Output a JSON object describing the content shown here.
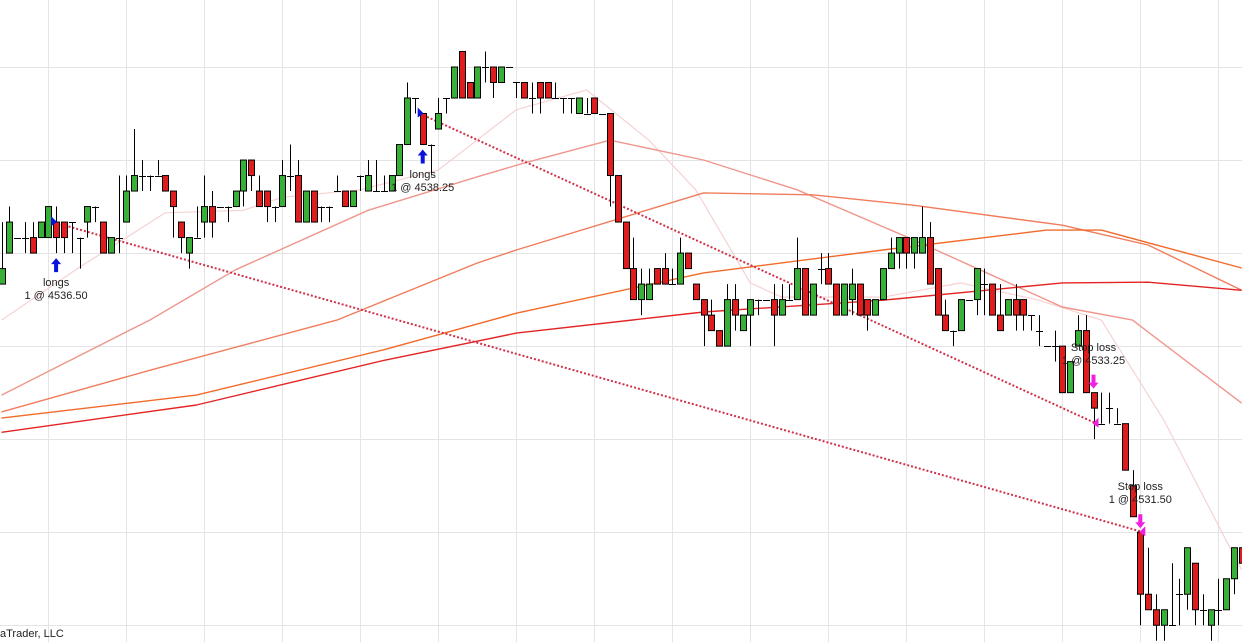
{
  "copyright": "aTrader, LLC",
  "colors": {
    "up_candle": "#38b038",
    "down_candle": "#e01c1c",
    "wick": "#000000",
    "grid": "#e4e4e4",
    "trade_line": "#d0304a",
    "entry_marker": "#0a14d8",
    "exit_marker": "#f020e0"
  },
  "chart_data": {
    "type": "candlestick",
    "title": "",
    "xlabel": "",
    "ylabel": "",
    "ylim": [
      4529.73,
      4540.08
    ],
    "grid": true,
    "price_grid_step": 1.5,
    "candles_ohlc": [
      [
        4535.5,
        4536.5,
        4535.5,
        4535.75
      ],
      [
        4536,
        4536.75,
        4536,
        4536.5
      ],
      [
        4536.25,
        4536.25,
        4536.25,
        4536.25
      ],
      [
        4536.25,
        4536.5,
        4536,
        4536.25
      ],
      [
        4536.25,
        4536.5,
        4536,
        4536
      ],
      [
        4536.25,
        4536.5,
        4536.25,
        4536.5
      ],
      [
        4536.25,
        4536.75,
        4536.25,
        4536.75
      ],
      [
        4536.5,
        4536.75,
        4536,
        4536.25
      ],
      [
        4536.5,
        4536.5,
        4536,
        4536.25
      ],
      [
        4536.5,
        4536.5,
        4536,
        4536.5
      ],
      [
        4536.25,
        4536.25,
        4535.75,
        4536.25
      ],
      [
        4536.5,
        4536.75,
        4536.25,
        4536.75
      ],
      [
        4536.75,
        4536.75,
        4536.5,
        4536.75
      ],
      [
        4536.5,
        4536.5,
        4536,
        4536
      ],
      [
        4536,
        4536.25,
        4536,
        4536.25
      ],
      [
        4536.25,
        4537.25,
        4536,
        4536.25
      ],
      [
        4536.5,
        4537.25,
        4536.5,
        4537
      ],
      [
        4537,
        4538,
        4537,
        4537.25
      ],
      [
        4537.25,
        4537.5,
        4537,
        4537.25
      ],
      [
        4537.25,
        4537.25,
        4537,
        4537.25
      ],
      [
        4537.25,
        4537.5,
        4537.25,
        4537.25
      ],
      [
        4537.25,
        4537.25,
        4537,
        4537
      ],
      [
        4537,
        4537,
        4536.25,
        4536.75
      ],
      [
        4536.5,
        4536.5,
        4536,
        4536.25
      ],
      [
        4536,
        4536.25,
        4535.75,
        4536.25
      ],
      [
        4536.25,
        4536.75,
        4536.25,
        4536.25
      ],
      [
        4536.5,
        4537.25,
        4536.25,
        4536.75
      ],
      [
        4536.75,
        4537,
        4536.25,
        4536.5
      ],
      [
        4536.75,
        4536.75,
        4536.75,
        4536.75
      ],
      [
        4536.75,
        4536.75,
        4536.5,
        4536.75
      ],
      [
        4536.75,
        4537,
        4536.75,
        4537
      ],
      [
        4537,
        4537.5,
        4536.75,
        4537.5
      ],
      [
        4537.5,
        4537.5,
        4537,
        4537.25
      ],
      [
        4537,
        4537.25,
        4536.75,
        4536.75
      ],
      [
        4537,
        4537,
        4536.5,
        4536.75
      ],
      [
        4536.75,
        4536.75,
        4536.5,
        4536.75
      ],
      [
        4536.75,
        4537.5,
        4536.75,
        4537.25
      ],
      [
        4537.25,
        4537.75,
        4537,
        4537.25
      ],
      [
        4537.25,
        4537.5,
        4536.5,
        4536.5
      ],
      [
        4536.5,
        4537,
        4536.5,
        4537
      ],
      [
        4537,
        4537,
        4536.5,
        4536.5
      ],
      [
        4536.75,
        4536.75,
        4536.5,
        4536.75
      ],
      [
        4536.75,
        4536.75,
        4536.5,
        4536.75
      ],
      [
        4537,
        4537.25,
        4537,
        4537
      ],
      [
        4537,
        4537,
        4536.75,
        4536.75
      ],
      [
        4536.75,
        4537,
        4536.75,
        4537
      ],
      [
        4537.25,
        4537.25,
        4537,
        4537.25
      ],
      [
        4537,
        4537.5,
        4537,
        4537.25
      ],
      [
        4537,
        4537.5,
        4537,
        4537
      ],
      [
        4537,
        4537.25,
        4537,
        4537
      ],
      [
        4537,
        4537.25,
        4537,
        4537.25
      ],
      [
        4537.25,
        4537.75,
        4537.25,
        4537.75
      ],
      [
        4537.75,
        4538.75,
        4537.75,
        4538.5
      ],
      [
        4538.5,
        4538.5,
        4538.25,
        4538.5
      ],
      [
        4538.25,
        4538.25,
        4537.75,
        4537.75
      ],
      [
        4537.75,
        4537.75,
        4537.25,
        4537.75
      ],
      [
        4538,
        4538.5,
        4538,
        4538.25
      ],
      [
        4538.5,
        4538.5,
        4538.25,
        4538.5
      ],
      [
        4538.5,
        4539,
        4538.5,
        4539
      ],
      [
        4539.25,
        4539.25,
        4538.5,
        4538.5
      ],
      [
        4538.75,
        4538.75,
        4538.5,
        4538.5
      ],
      [
        4538.5,
        4539,
        4538.5,
        4539
      ],
      [
        4539,
        4539.25,
        4538.75,
        4539
      ],
      [
        4539,
        4539,
        4538.5,
        4538.75
      ],
      [
        4538.75,
        4539,
        4538.75,
        4539
      ],
      [
        4539,
        4539,
        4539,
        4539
      ],
      [
        4538.75,
        4538.75,
        4538.5,
        4538.75
      ],
      [
        4538.75,
        4538.75,
        4538.5,
        4538.5
      ],
      [
        4538.5,
        4538.75,
        4538.25,
        4538.5
      ],
      [
        4538.75,
        4538.75,
        4538.25,
        4538.5
      ],
      [
        4538.75,
        4538.75,
        4538.5,
        4538.5
      ],
      [
        4538.5,
        4538.75,
        4538.5,
        4538.5
      ],
      [
        4538.5,
        4538.5,
        4538.25,
        4538.5
      ],
      [
        4538.5,
        4538.5,
        4538.25,
        4538.5
      ],
      [
        4538.25,
        4538.5,
        4538.25,
        4538.5
      ],
      [
        4538.25,
        4538.5,
        4538.25,
        4538.25
      ],
      [
        4538.5,
        4538.5,
        4538.25,
        4538.25
      ],
      [
        4538.25,
        4538.25,
        4538.25,
        4538.25
      ],
      [
        4538.25,
        4538.25,
        4536.75,
        4537.25
      ],
      [
        4537.25,
        4537.25,
        4536.5,
        4536.5
      ],
      [
        4536.5,
        4536.5,
        4535.75,
        4535.75
      ],
      [
        4535.75,
        4536.25,
        4535.25,
        4535.25
      ],
      [
        4535.25,
        4535.75,
        4535,
        4535.5
      ],
      [
        4535.25,
        4535.75,
        4535.25,
        4535.5
      ],
      [
        4535.75,
        4535.75,
        4535.5,
        4535.5
      ],
      [
        4535.75,
        4536,
        4535.5,
        4535.5
      ],
      [
        4535.5,
        4535.75,
        4535.5,
        4535.5
      ],
      [
        4535.5,
        4536.25,
        4535.5,
        4536
      ],
      [
        4536,
        4536,
        4535.75,
        4535.75
      ],
      [
        4535.5,
        4535.5,
        4535.25,
        4535.25
      ],
      [
        4535.25,
        4535.25,
        4534.5,
        4535
      ],
      [
        4535,
        4535.25,
        4534.75,
        4534.75
      ],
      [
        4534.75,
        4534.75,
        4534.5,
        4534.5
      ],
      [
        4534.5,
        4535.5,
        4534.5,
        4535.25
      ],
      [
        4535.25,
        4535.5,
        4534.75,
        4535
      ],
      [
        4534.75,
        4535,
        4534.75,
        4535
      ],
      [
        4535,
        4535.25,
        4534.5,
        4535.25
      ],
      [
        4535.25,
        4535.25,
        4535,
        4535.25
      ],
      [
        4535.25,
        4535.25,
        4535.25,
        4535.25
      ],
      [
        4535.25,
        4535.5,
        4534.5,
        4535
      ],
      [
        4535,
        4535.5,
        4535,
        4535.25
      ],
      [
        4535.25,
        4535.5,
        4535.25,
        4535.25
      ],
      [
        4535.25,
        4536.25,
        4535.25,
        4535.75
      ],
      [
        4535.75,
        4535.75,
        4535,
        4535
      ],
      [
        4535,
        4535.5,
        4535,
        4535.5
      ],
      [
        4535.75,
        4536,
        4535.5,
        4535.75
      ],
      [
        4535.75,
        4536,
        4535.5,
        4535.5
      ],
      [
        4535.5,
        4535.5,
        4535,
        4535
      ],
      [
        4535,
        4535.5,
        4535,
        4535.5
      ],
      [
        4535.25,
        4535.75,
        4535,
        4535.5
      ],
      [
        4535.5,
        4535.5,
        4535,
        4535
      ],
      [
        4535.25,
        4535.25,
        4534.75,
        4535
      ],
      [
        4535,
        4535.25,
        4535,
        4535.25
      ],
      [
        4535.25,
        4535.75,
        4535.25,
        4535.75
      ],
      [
        4535.75,
        4536.25,
        4535.75,
        4536
      ],
      [
        4536,
        4536.25,
        4535.75,
        4536.25
      ],
      [
        4536.25,
        4536.25,
        4535.75,
        4536
      ],
      [
        4536,
        4536.25,
        4535.75,
        4536.25
      ],
      [
        4536,
        4536.75,
        4536,
        4536.25
      ],
      [
        4536.25,
        4536.5,
        4535.5,
        4535.5
      ],
      [
        4535.75,
        4535.75,
        4535,
        4535
      ],
      [
        4535,
        4535.25,
        4534.75,
        4534.75
      ],
      [
        4534.75,
        4534.75,
        4534.5,
        4534.75
      ],
      [
        4534.75,
        4535.25,
        4534.75,
        4535.25
      ],
      [
        4535.25,
        4535.25,
        4535.25,
        4535.25
      ],
      [
        4535.25,
        4535.75,
        4535,
        4535.75
      ],
      [
        4535.5,
        4535.75,
        4535,
        4535.5
      ],
      [
        4535.5,
        4535.5,
        4535,
        4535
      ],
      [
        4535,
        4535.5,
        4534.75,
        4534.75
      ],
      [
        4535,
        4535.25,
        4535,
        4535.25
      ],
      [
        4535.25,
        4535.5,
        4534.75,
        4535
      ],
      [
        4535.25,
        4535.25,
        4534.75,
        4535
      ],
      [
        4535,
        4535,
        4534.75,
        4535
      ],
      [
        4534.75,
        4535,
        4534.5,
        4534.75
      ],
      [
        4534.5,
        4534.5,
        4534.5,
        4534.5
      ],
      [
        4534.5,
        4534.75,
        4534.25,
        4534.5
      ],
      [
        4534.5,
        4534.5,
        4533.75,
        4533.75
      ],
      [
        4533.75,
        4534.25,
        4533.75,
        4534.25
      ],
      [
        4534.5,
        4535,
        4534.5,
        4534.75
      ],
      [
        4534.75,
        4535,
        4533.75,
        4533.75
      ],
      [
        4533.75,
        4533.75,
        4533,
        4533.5
      ],
      [
        4533.25,
        4533.75,
        4533.25,
        4533.25
      ],
      [
        4533.5,
        4533.75,
        4533.25,
        4533.5
      ],
      [
        4533.25,
        4533.5,
        4533.25,
        4533.25
      ],
      [
        4533.25,
        4533.25,
        4532.5,
        4532.5
      ],
      [
        4532.25,
        4532.5,
        4531.75,
        4531.75
      ],
      [
        4531.5,
        4531.5,
        4530,
        4530.5
      ],
      [
        4530.5,
        4531.25,
        4530.25,
        4530.25
      ],
      [
        4530.25,
        4530.5,
        4529.75,
        4530
      ],
      [
        4530,
        4530.25,
        4529.75,
        4530.25
      ],
      [
        4530,
        4531,
        4530,
        4530
      ],
      [
        4530.5,
        4530.75,
        4530,
        4530.5
      ],
      [
        4530.5,
        4531.25,
        4530.25,
        4531.25
      ],
      [
        4531,
        4531,
        4530,
        4530.25
      ],
      [
        4530.25,
        4530.5,
        4530,
        4530.25
      ],
      [
        4530,
        4530.25,
        4529.75,
        4530.25
      ],
      [
        4530.25,
        4530.75,
        4530,
        4530.25
      ],
      [
        4530.25,
        4530.75,
        4530.25,
        4530.75
      ],
      [
        4530.75,
        4531.25,
        4530.5,
        4531.25
      ],
      [
        4531.25,
        4531.25,
        4530.75,
        4531
      ]
    ],
    "moving_averages": [
      {
        "color": "#f6d2d2",
        "points": [
          [
            0,
            4534.92
          ],
          [
            10,
            4535.77
          ],
          [
            21,
            4536.65
          ],
          [
            31,
            4536.69
          ],
          [
            36,
            4536.9
          ],
          [
            46,
            4537.02
          ],
          [
            56,
            4537.34
          ],
          [
            66,
            4538.31
          ],
          [
            75,
            4538.63
          ],
          [
            83,
            4537.82
          ],
          [
            89,
            4537.02
          ],
          [
            96,
            4535.52
          ],
          [
            100,
            4535.29
          ],
          [
            113,
            4535.29
          ],
          [
            123,
            4535.52
          ],
          [
            133,
            4535.24
          ],
          [
            141,
            4534.92
          ],
          [
            149,
            4533.31
          ],
          [
            157,
            4531.37
          ],
          [
            159,
            4530.89
          ]
        ]
      },
      {
        "color": "#f0968c",
        "points": [
          [
            0,
            4533.71
          ],
          [
            19,
            4534.92
          ],
          [
            30,
            4535.73
          ],
          [
            47,
            4536.69
          ],
          [
            61,
            4537.23
          ],
          [
            67,
            4537.45
          ],
          [
            78,
            4537.82
          ],
          [
            90,
            4537.5
          ],
          [
            102,
            4537.02
          ],
          [
            117,
            4536.21
          ],
          [
            136,
            4535.13
          ],
          [
            145,
            4534.92
          ],
          [
            159,
            4533.58
          ]
        ]
      },
      {
        "color": "#f07c5c",
        "points": [
          [
            0,
            4533.44
          ],
          [
            19,
            4534.11
          ],
          [
            43,
            4534.92
          ],
          [
            61,
            4535.84
          ],
          [
            66,
            4536.05
          ],
          [
            90,
            4536.97
          ],
          [
            104,
            4536.94
          ],
          [
            117,
            4536.77
          ],
          [
            136,
            4536.45
          ],
          [
            147,
            4536.13
          ],
          [
            159,
            4535.4
          ]
        ]
      },
      {
        "color": "#f26a2a",
        "points": [
          [
            0,
            4533.34
          ],
          [
            25,
            4533.71
          ],
          [
            49,
            4534.44
          ],
          [
            66,
            4535.03
          ],
          [
            90,
            4535.68
          ],
          [
            113,
            4536.05
          ],
          [
            134,
            4536.37
          ],
          [
            141,
            4536.37
          ],
          [
            159,
            4535.76
          ]
        ]
      },
      {
        "color": "#e42424",
        "points": [
          [
            0,
            4533.11
          ],
          [
            25,
            4533.55
          ],
          [
            49,
            4534.27
          ],
          [
            66,
            4534.71
          ],
          [
            90,
            4535.05
          ],
          [
            113,
            4535.24
          ],
          [
            136,
            4535.52
          ],
          [
            147,
            4535.53
          ],
          [
            159,
            4535.4
          ]
        ]
      }
    ],
    "trades": [
      {
        "entry_bar": 7,
        "entry_price": 4536.5,
        "exit_bar": 146,
        "exit_price": 4531.5,
        "entry_label": "longs",
        "entry_qty_label": "1 @ 4536.50",
        "exit_label": "Stop loss",
        "exit_qty_label": "1 @ 4531.50"
      },
      {
        "entry_bar": 54,
        "entry_price": 4538.25,
        "exit_bar": 140,
        "exit_price": 4533.25,
        "entry_label": "longs",
        "entry_qty_label": "1 @ 4538.25",
        "exit_label": "Stop loss",
        "exit_qty_label": "1 @ 4533.25"
      }
    ]
  }
}
